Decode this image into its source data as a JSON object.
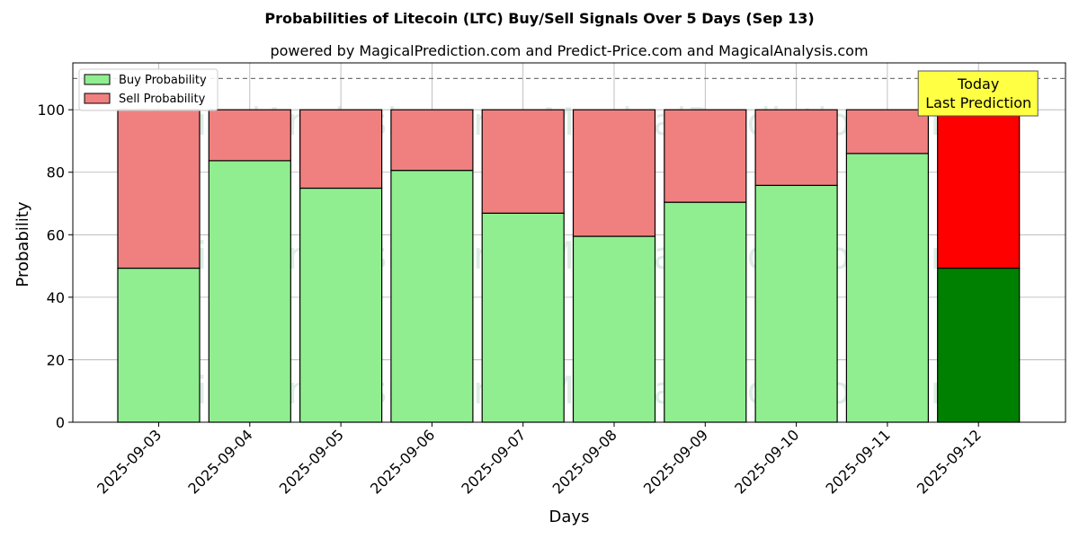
{
  "chart_data": {
    "type": "bar",
    "stacked": true,
    "title": "Probabilities of Litecoin (LTC) Buy/Sell Signals Over 5 Days (Sep 13)",
    "subtitle": "powered by MagicalPrediction.com and Predict-Price.com and MagicalAnalysis.com",
    "xlabel": "Days",
    "ylabel": "Probability",
    "ylim": [
      0,
      115
    ],
    "yticks": [
      0,
      20,
      40,
      60,
      80,
      100
    ],
    "grid": true,
    "legend_position": "top-left",
    "reference_line": {
      "y": 110,
      "style": "dashed"
    },
    "categories": [
      "2025-09-03",
      "2025-09-04",
      "2025-09-05",
      "2025-09-06",
      "2025-09-07",
      "2025-09-08",
      "2025-09-09",
      "2025-09-10",
      "2025-09-11",
      "2025-09-12"
    ],
    "series": [
      {
        "name": "Buy Probability",
        "color": "#90ee90",
        "highlight_color": "#008000",
        "values": [
          49.3,
          83.7,
          74.9,
          80.6,
          66.9,
          59.5,
          70.4,
          75.8,
          86.0,
          49.3
        ]
      },
      {
        "name": "Sell Probability",
        "color": "#f08080",
        "highlight_color": "#ff0000",
        "values": [
          50.7,
          16.3,
          25.1,
          19.4,
          33.1,
          40.5,
          29.6,
          24.2,
          14.0,
          50.7
        ]
      }
    ],
    "highlight_index": 9,
    "annotation": {
      "lines": [
        "Today",
        "Last Prediction"
      ],
      "color": "#ffff44"
    },
    "watermarks": [
      "MagicalAnalysis.com",
      "MagicalPrediction.com"
    ]
  }
}
